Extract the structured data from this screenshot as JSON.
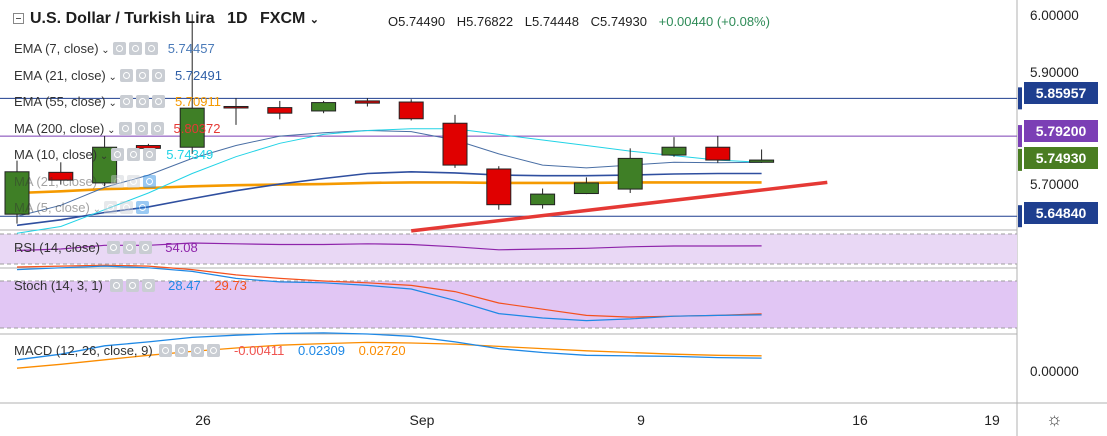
{
  "header": {
    "title": "U.S. Dollar / Turkish Lira",
    "interval": "1D",
    "source": "FXCM",
    "open": "O5.74490",
    "high": "H5.76822",
    "low": "L5.74448",
    "close": "C5.74930",
    "change": "+0.00440 (+0.08%)"
  },
  "indicators": [
    {
      "label": "EMA (7, close)",
      "value": "5.74457",
      "color": "#4a7ab8"
    },
    {
      "label": "EMA (21, close)",
      "value": "5.72491",
      "color": "#2f5fa7"
    },
    {
      "label": "EMA (55, close)",
      "value": "5.70911",
      "color": "#f59a00"
    },
    {
      "label": "MA (200, close)",
      "value": "5.80372",
      "color": "#e53935"
    },
    {
      "label": "MA (10, close)",
      "value": "5.74349",
      "color": "#22d3e6"
    },
    {
      "label": "MA (21, close)",
      "value": "",
      "color": "#999999"
    },
    {
      "label": "MA (5, close)",
      "value": "",
      "color": "#999999"
    }
  ],
  "price_axis": {
    "ticks": [
      "6.00000",
      "5.90000",
      "5.70000"
    ],
    "boxes": [
      {
        "value": "5.85957",
        "price": 5.85957,
        "color": "#1f3f8f"
      },
      {
        "value": "5.79200",
        "price": 5.792,
        "color": "#7b3fb5"
      },
      {
        "value": "5.74930",
        "price": 5.7493,
        "color": "#4a7d22"
      },
      {
        "value": "5.64840",
        "price": 5.6484,
        "color": "#1f3f8f"
      }
    ]
  },
  "x_axis": {
    "ticks": [
      {
        "label": "26",
        "bar": 4
      },
      {
        "label": "Sep",
        "bar": 9
      },
      {
        "label": "9",
        "bar": 14
      },
      {
        "label": "16",
        "bar": 19
      },
      {
        "label": "19",
        "bar": 22
      }
    ]
  },
  "rsi": {
    "label": "RSI (14, close)",
    "value": "54.08"
  },
  "stoch": {
    "label": "Stoch (14, 3, 1)",
    "k_value": "28.47",
    "d_value": "29.73"
  },
  "macd": {
    "label": "MACD (12, 26, close, 9)",
    "hist_value": "-0.00411",
    "macd_value": "0.02309",
    "signal_value": "0.02720",
    "zero_tick": "0.00000"
  },
  "chart_data": {
    "type": "candlestick",
    "symbol": "U.S. Dollar / Turkish Lira",
    "interval": "1D",
    "ylim": [
      5.6,
      6.02
    ],
    "candles": [
      {
        "open": 5.652,
        "high": 5.748,
        "low": 5.635,
        "close": 5.728
      },
      {
        "open": 5.727,
        "high": 5.745,
        "low": 5.705,
        "close": 5.713
      },
      {
        "open": 5.708,
        "high": 5.792,
        "low": 5.702,
        "close": 5.772
      },
      {
        "open": 5.775,
        "high": 5.778,
        "low": 5.752,
        "close": 5.77
      },
      {
        "open": 5.772,
        "high": 6.01,
        "low": 5.76,
        "close": 5.842
      },
      {
        "open": 5.845,
        "high": 5.86,
        "low": 5.812,
        "close": 5.843
      },
      {
        "open": 5.843,
        "high": 5.855,
        "low": 5.822,
        "close": 5.833
      },
      {
        "open": 5.837,
        "high": 5.855,
        "low": 5.833,
        "close": 5.852
      },
      {
        "open": 5.855,
        "high": 5.86,
        "low": 5.845,
        "close": 5.851
      },
      {
        "open": 5.853,
        "high": 5.858,
        "low": 5.82,
        "close": 5.823
      },
      {
        "open": 5.815,
        "high": 5.83,
        "low": 5.735,
        "close": 5.74
      },
      {
        "open": 5.733,
        "high": 5.738,
        "low": 5.66,
        "close": 5.669
      },
      {
        "open": 5.669,
        "high": 5.698,
        "low": 5.662,
        "close": 5.688
      },
      {
        "open": 5.689,
        "high": 5.718,
        "low": 5.688,
        "close": 5.708
      },
      {
        "open": 5.697,
        "high": 5.77,
        "low": 5.69,
        "close": 5.752
      },
      {
        "open": 5.758,
        "high": 5.79,
        "low": 5.755,
        "close": 5.772
      },
      {
        "open": 5.772,
        "high": 5.792,
        "low": 5.744,
        "close": 5.749
      },
      {
        "open": 5.745,
        "high": 5.768,
        "low": 5.744,
        "close": 5.749
      }
    ],
    "levels": [
      5.85957,
      5.792,
      5.6484
    ],
    "trendline": {
      "from": {
        "bar": 9,
        "price": 5.622
      },
      "to": {
        "bar": 18.5,
        "price": 5.709
      },
      "color": "#e53935"
    },
    "ema7": [
      5.648,
      5.668,
      5.7,
      5.722,
      5.752,
      5.775,
      5.792,
      5.798,
      5.802,
      5.8,
      5.785,
      5.76,
      5.74,
      5.735,
      5.74,
      5.745,
      5.744,
      5.745
    ],
    "ema21": [
      5.632,
      5.642,
      5.655,
      5.665,
      5.68,
      5.694,
      5.706,
      5.716,
      5.725,
      5.728,
      5.726,
      5.722,
      5.721,
      5.721,
      5.722,
      5.724,
      5.725,
      5.725
    ],
    "ema55": [
      5.69,
      5.693,
      5.697,
      5.699,
      5.702,
      5.704,
      5.705,
      5.706,
      5.708,
      5.709,
      5.709,
      5.708,
      5.708,
      5.708,
      5.709,
      5.709,
      5.709,
      5.709
    ],
    "ma10": [
      5.618,
      5.63,
      5.66,
      5.69,
      5.725,
      5.755,
      5.779,
      5.795,
      5.802,
      5.805,
      5.805,
      5.795,
      5.785,
      5.775,
      5.765,
      5.757,
      5.749,
      5.745
    ],
    "rsi": [
      48,
      50,
      55,
      55,
      58,
      57,
      56,
      56,
      57,
      56,
      53,
      49,
      50,
      51,
      53,
      54,
      54,
      54.08
    ],
    "stoch": {
      "k": [
        80,
        82,
        84,
        82,
        78,
        70,
        66,
        65,
        62,
        58,
        45,
        30,
        25,
        22,
        24,
        27,
        28,
        28.47
      ],
      "d": [
        83,
        84,
        85,
        84,
        80,
        74,
        70,
        67,
        65,
        62,
        55,
        42,
        35,
        28,
        26,
        27,
        28,
        29.73
      ]
    },
    "macd": {
      "macd": [
        0.02,
        0.03,
        0.045,
        0.052,
        0.06,
        0.064,
        0.067,
        0.068,
        0.066,
        0.062,
        0.052,
        0.04,
        0.033,
        0.028,
        0.027,
        0.026,
        0.024,
        0.02309
      ],
      "signal": [
        0.005,
        0.012,
        0.02,
        0.028,
        0.035,
        0.041,
        0.046,
        0.049,
        0.051,
        0.05,
        0.048,
        0.044,
        0.04,
        0.036,
        0.033,
        0.03,
        0.028,
        0.0272
      ]
    }
  }
}
